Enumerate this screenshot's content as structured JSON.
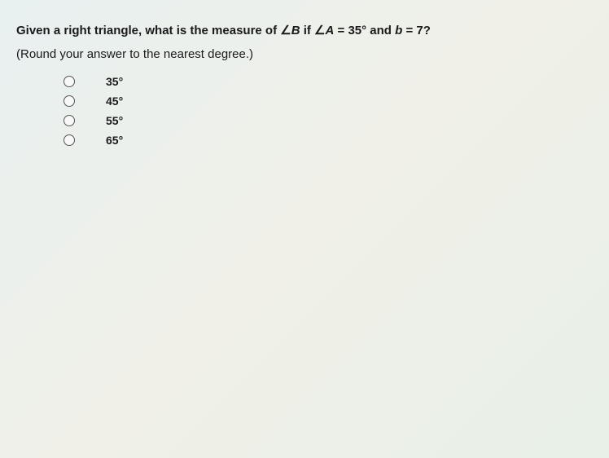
{
  "question": {
    "line1_prefix": "Given a right triangle, what is the measure of ∠",
    "line1_var1": "B",
    "line1_mid1": " if ∠",
    "line1_var2": "A",
    "line1_mid2": " = 35° and ",
    "line1_var3": "b",
    "line1_suffix": " = 7?",
    "line2": "(Round your answer to the nearest degree.)"
  },
  "options": [
    {
      "label": "35°"
    },
    {
      "label": "45°"
    },
    {
      "label": "55°"
    },
    {
      "label": "65°"
    }
  ],
  "style": {
    "background_color": "#eef2ef",
    "text_color": "#1a1a1a",
    "question_fontsize": 15,
    "option_fontsize": 14,
    "radio_border_color": "#555555",
    "font_family": "Arial"
  }
}
